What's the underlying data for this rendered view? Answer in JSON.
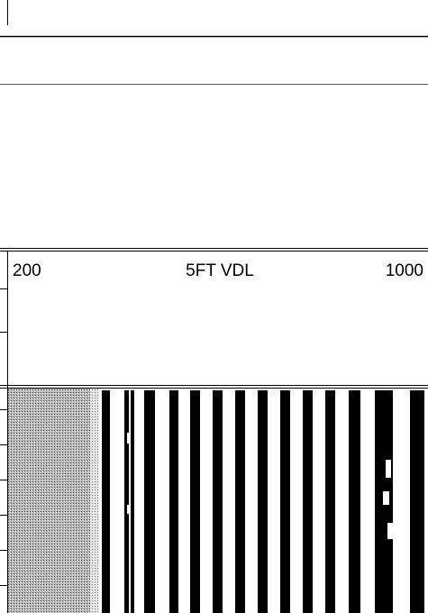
{
  "track_header": {
    "scale_min": "200",
    "title": "5FT VDL",
    "scale_max": "1000"
  }
}
